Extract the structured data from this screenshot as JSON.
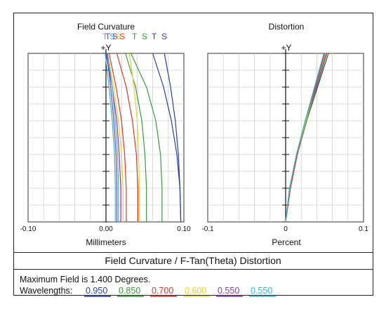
{
  "figure": {
    "caption": "Field Curvature / F-Tan(Theta) Distortion",
    "max_field_text": "Maximum Field is 1.400 Degrees.",
    "wavelengths_label": "Wavelengths:",
    "wavelengths": [
      {
        "value": "0.950",
        "color": "#2a3f9a"
      },
      {
        "value": "0.850",
        "color": "#3c9a3c"
      },
      {
        "value": "0.700",
        "color": "#d23c2c"
      },
      {
        "value": "0.600",
        "color": "#e0d23c"
      },
      {
        "value": "0.550",
        "color": "#8a3ca0"
      },
      {
        "value": "0.550",
        "color": "#3cb4c8"
      }
    ]
  },
  "chart_data": [
    {
      "type": "line",
      "title": "Field Curvature",
      "xlabel": "Millimeters",
      "ylabel": "+Y",
      "xlim": [
        -0.1,
        0.1
      ],
      "ylim": [
        0,
        1.4
      ],
      "x_ticks": [
        "-0.10",
        "0.00",
        "0.10"
      ],
      "legend_letters": [
        {
          "text": "T",
          "color": "#3cb4c8"
        },
        {
          "text": "T",
          "color": "#8a3ca0"
        },
        {
          "text": "S",
          "color": "#3cb4c8"
        },
        {
          "text": "S",
          "color": "#8a3ca0"
        },
        {
          "text": "S",
          "color": "#e0d23c"
        },
        {
          "text": "S",
          "color": "#d23c2c"
        },
        {
          "text": "T",
          "color": "#3c9a3c"
        },
        {
          "text": "S",
          "color": "#3c9a3c"
        },
        {
          "text": "T",
          "color": "#2a3f9a"
        },
        {
          "text": "S",
          "color": "#2a3f9a"
        }
      ],
      "series": [
        {
          "color": "#2a3f9a",
          "x": [
            0.075,
            0.083,
            0.089,
            0.093,
            0.095,
            0.096
          ],
          "y": [
            1.4,
            1.12,
            0.84,
            0.56,
            0.28,
            0.0
          ]
        },
        {
          "color": "#2a3f9a",
          "x": [
            0.06,
            0.074,
            0.084,
            0.091,
            0.095,
            0.096
          ],
          "y": [
            1.4,
            1.12,
            0.84,
            0.56,
            0.28,
            0.0
          ]
        },
        {
          "color": "#3c9a3c",
          "x": [
            0.032,
            0.052,
            0.064,
            0.07,
            0.072,
            0.072
          ],
          "y": [
            1.4,
            1.12,
            0.84,
            0.56,
            0.28,
            0.0
          ]
        },
        {
          "color": "#3c9a3c",
          "x": [
            0.025,
            0.038,
            0.046,
            0.05,
            0.052,
            0.052
          ],
          "y": [
            1.4,
            1.12,
            0.84,
            0.56,
            0.28,
            0.0
          ]
        },
        {
          "color": "#d23c2c",
          "x": [
            0.014,
            0.026,
            0.034,
            0.039,
            0.041,
            0.041
          ],
          "y": [
            1.4,
            1.12,
            0.84,
            0.56,
            0.28,
            0.0
          ]
        },
        {
          "color": "#d23c2c",
          "x": [
            0.004,
            0.013,
            0.02,
            0.024,
            0.026,
            0.026
          ],
          "y": [
            1.4,
            1.12,
            0.84,
            0.56,
            0.28,
            0.0
          ]
        },
        {
          "color": "#e0d23c",
          "x": [
            0.03,
            0.036,
            0.04,
            0.042,
            0.043,
            0.043
          ],
          "y": [
            1.4,
            1.12,
            0.84,
            0.56,
            0.28,
            0.0
          ]
        },
        {
          "color": "#e0d23c",
          "x": [
            0.002,
            0.01,
            0.016,
            0.02,
            0.022,
            0.022
          ],
          "y": [
            1.4,
            1.12,
            0.84,
            0.56,
            0.28,
            0.0
          ]
        },
        {
          "color": "#8a3ca0",
          "x": [
            0.0,
            0.008,
            0.014,
            0.017,
            0.019,
            0.019
          ],
          "y": [
            1.4,
            1.12,
            0.84,
            0.56,
            0.28,
            0.0
          ]
        },
        {
          "color": "#8a3ca0",
          "x": [
            0.001,
            0.006,
            0.01,
            0.013,
            0.014,
            0.014
          ],
          "y": [
            1.4,
            1.12,
            0.84,
            0.56,
            0.28,
            0.0
          ]
        },
        {
          "color": "#3cb4c8",
          "x": [
            -0.001,
            0.004,
            0.008,
            0.011,
            0.012,
            0.012
          ],
          "y": [
            1.4,
            1.12,
            0.84,
            0.56,
            0.28,
            0.0
          ]
        },
        {
          "color": "#3cb4c8",
          "x": [
            0.002,
            0.008,
            0.012,
            0.015,
            0.016,
            0.016
          ],
          "y": [
            1.4,
            1.12,
            0.84,
            0.56,
            0.28,
            0.0
          ]
        }
      ],
      "grid": true
    },
    {
      "type": "line",
      "title": "Distortion",
      "xlabel": "Percent",
      "ylabel": "+Y",
      "xlim": [
        -0.1,
        0.1
      ],
      "ylim": [
        0,
        1.4
      ],
      "x_ticks": [
        "-0.1",
        "0",
        "0.1"
      ],
      "series": [
        {
          "color": "#2a3f9a",
          "x": [
            0.0,
            0.006,
            0.015,
            0.027,
            0.041,
            0.055
          ],
          "y": [
            0.0,
            0.28,
            0.56,
            0.84,
            1.12,
            1.4
          ]
        },
        {
          "color": "#3c9a3c",
          "x": [
            0.0,
            0.006,
            0.015,
            0.027,
            0.04,
            0.053
          ],
          "y": [
            0.0,
            0.28,
            0.56,
            0.84,
            1.12,
            1.4
          ]
        },
        {
          "color": "#d23c2c",
          "x": [
            0.0,
            0.006,
            0.015,
            0.026,
            0.039,
            0.052
          ],
          "y": [
            0.0,
            0.28,
            0.56,
            0.84,
            1.12,
            1.4
          ]
        },
        {
          "color": "#e0d23c",
          "x": [
            0.0,
            0.005,
            0.014,
            0.026,
            0.038,
            0.051
          ],
          "y": [
            0.0,
            0.28,
            0.56,
            0.84,
            1.12,
            1.4
          ]
        },
        {
          "color": "#8a3ca0",
          "x": [
            0.0,
            0.005,
            0.014,
            0.025,
            0.038,
            0.05
          ],
          "y": [
            0.0,
            0.28,
            0.56,
            0.84,
            1.12,
            1.4
          ]
        },
        {
          "color": "#3cb4c8",
          "x": [
            0.0,
            0.005,
            0.014,
            0.025,
            0.037,
            0.049
          ],
          "y": [
            0.0,
            0.28,
            0.56,
            0.84,
            1.12,
            1.4
          ]
        }
      ],
      "grid": true
    }
  ]
}
